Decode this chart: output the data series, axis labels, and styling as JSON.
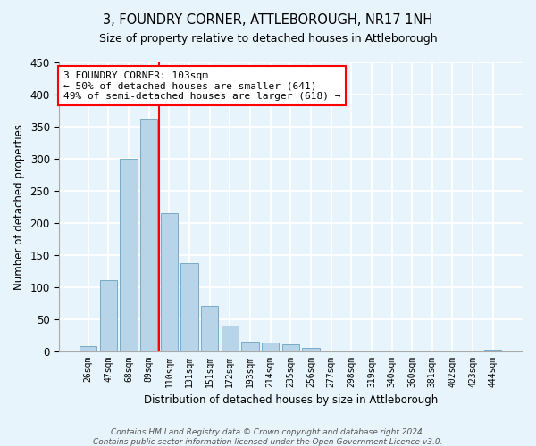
{
  "title": "3, FOUNDRY CORNER, ATTLEBOROUGH, NR17 1NH",
  "subtitle": "Size of property relative to detached houses in Attleborough",
  "xlabel": "Distribution of detached houses by size in Attleborough",
  "ylabel": "Number of detached properties",
  "bar_labels": [
    "26sqm",
    "47sqm",
    "68sqm",
    "89sqm",
    "110sqm",
    "131sqm",
    "151sqm",
    "172sqm",
    "193sqm",
    "214sqm",
    "235sqm",
    "256sqm",
    "277sqm",
    "298sqm",
    "319sqm",
    "340sqm",
    "360sqm",
    "381sqm",
    "402sqm",
    "423sqm",
    "444sqm"
  ],
  "bar_values": [
    8,
    110,
    300,
    362,
    215,
    137,
    70,
    40,
    15,
    13,
    10,
    5,
    0,
    0,
    0,
    0,
    0,
    0,
    0,
    0,
    2
  ],
  "bar_color": "#b8d4e8",
  "bar_edge_color": "#7aaac8",
  "vline_x_index": 3.5,
  "vline_color": "red",
  "annotation_text": "3 FOUNDRY CORNER: 103sqm\n← 50% of detached houses are smaller (641)\n49% of semi-detached houses are larger (618) →",
  "annotation_box_color": "white",
  "annotation_box_edge_color": "red",
  "ylim": [
    0,
    450
  ],
  "yticks": [
    0,
    50,
    100,
    150,
    200,
    250,
    300,
    350,
    400,
    450
  ],
  "footer1": "Contains HM Land Registry data © Crown copyright and database right 2024.",
  "footer2": "Contains public sector information licensed under the Open Government Licence v3.0.",
  "bg_color": "#e8f4fc",
  "grid_color": "#ffffff"
}
